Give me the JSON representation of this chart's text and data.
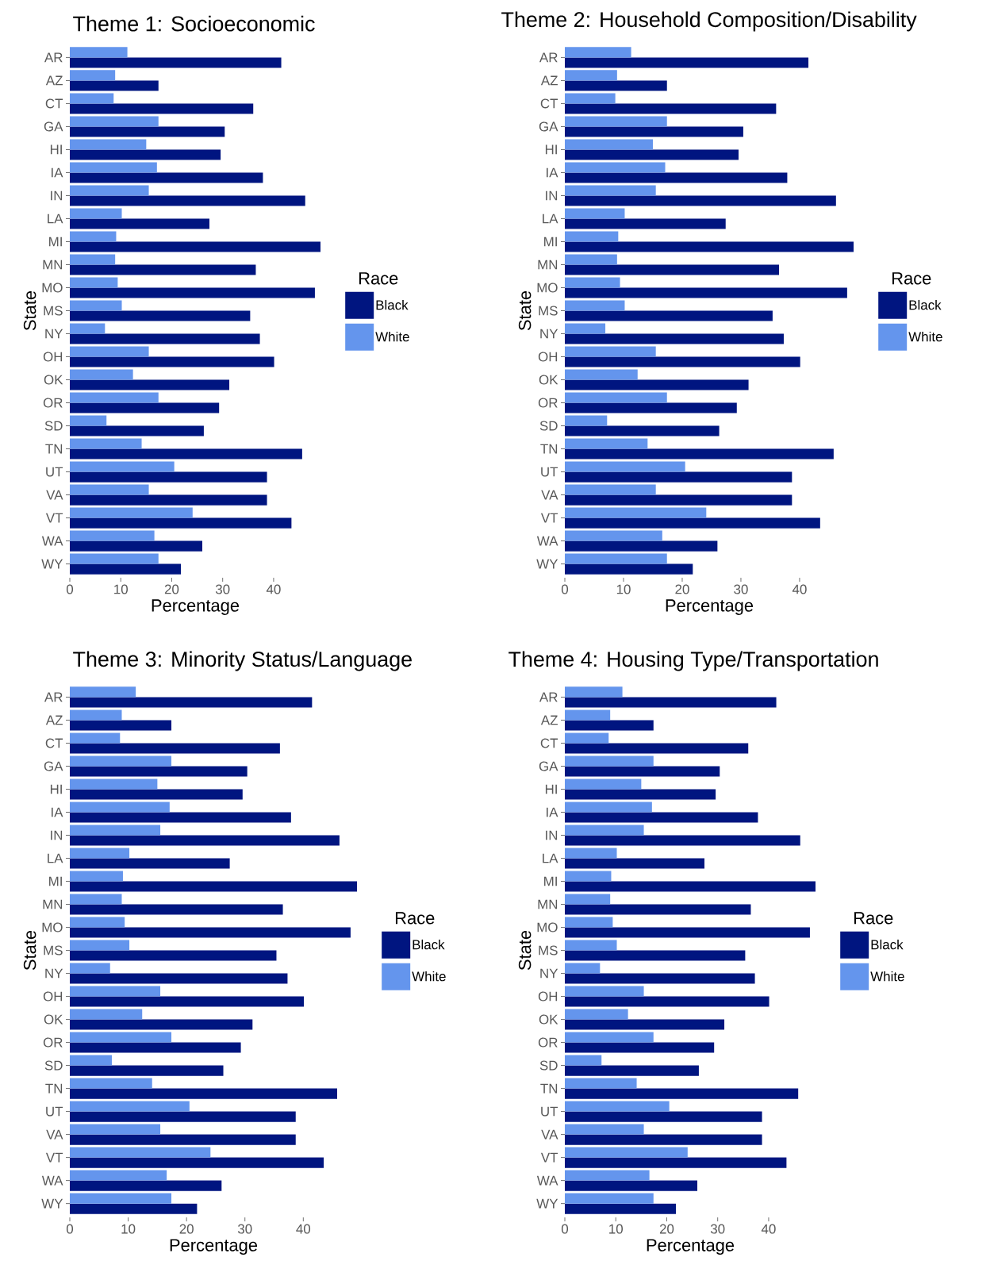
{
  "chart_data": [
    {
      "type": "bar",
      "orientation": "horizontal",
      "title": "Theme 1: Socioeconomic",
      "xlabel": "Percentage",
      "ylabel": "State",
      "legend_title": "Race",
      "legend": "right",
      "xlim": [
        0,
        49.2
      ],
      "xticks": [
        0,
        10,
        20,
        30,
        40
      ],
      "categories": [
        "AR",
        "AZ",
        "CT",
        "GA",
        "HI",
        "IA",
        "IN",
        "LA",
        "MI",
        "MN",
        "MO",
        "MS",
        "NY",
        "OH",
        "OK",
        "OR",
        "SD",
        "TN",
        "UT",
        "VA",
        "VT",
        "WA",
        "WY"
      ],
      "series": [
        {
          "name": "Black",
          "color": "#001580",
          "values": [
            41.5,
            17.4,
            36.0,
            30.4,
            29.6,
            37.9,
            46.2,
            27.4,
            49.2,
            36.5,
            48.1,
            35.4,
            37.3,
            40.1,
            31.3,
            29.3,
            26.3,
            45.6,
            38.7,
            38.7,
            43.5,
            26.0,
            21.8
          ]
        },
        {
          "name": "White",
          "color": "#6495ed",
          "values": [
            11.3,
            8.9,
            8.6,
            17.4,
            15.0,
            17.1,
            15.5,
            10.2,
            9.1,
            8.9,
            9.4,
            10.2,
            6.9,
            15.5,
            12.4,
            17.4,
            7.2,
            14.1,
            20.5,
            15.5,
            24.1,
            16.6,
            17.4
          ]
        }
      ]
    },
    {
      "type": "bar",
      "orientation": "horizontal",
      "title": "Theme 2: Household Composition/Disability",
      "xlabel": "Percentage",
      "ylabel": "State",
      "legend_title": "Race",
      "legend": "right",
      "xlim": [
        0,
        49.2
      ],
      "xticks": [
        0,
        10,
        20,
        30,
        40
      ],
      "categories": [
        "AR",
        "AZ",
        "CT",
        "GA",
        "HI",
        "IA",
        "IN",
        "LA",
        "MI",
        "MN",
        "MO",
        "MS",
        "NY",
        "OH",
        "OK",
        "OR",
        "SD",
        "TN",
        "UT",
        "VA",
        "VT",
        "WA",
        "WY"
      ],
      "series": [
        {
          "name": "Black",
          "color": "#001580",
          "values": [
            41.5,
            17.4,
            36.0,
            30.4,
            29.6,
            37.9,
            46.2,
            27.4,
            49.2,
            36.5,
            48.1,
            35.4,
            37.3,
            40.1,
            31.3,
            29.3,
            26.3,
            45.8,
            38.7,
            38.7,
            43.5,
            26.0,
            21.8
          ]
        },
        {
          "name": "White",
          "color": "#6495ed",
          "values": [
            11.3,
            8.9,
            8.6,
            17.4,
            15.0,
            17.1,
            15.5,
            10.2,
            9.1,
            8.9,
            9.4,
            10.2,
            6.9,
            15.5,
            12.4,
            17.4,
            7.2,
            14.1,
            20.5,
            15.5,
            24.1,
            16.6,
            17.4
          ]
        }
      ]
    },
    {
      "type": "bar",
      "orientation": "horizontal",
      "title": "Theme 3: Minority Status/Language",
      "xlabel": "Percentage",
      "ylabel": "State",
      "legend_title": "Race",
      "legend": "right",
      "xlim": [
        0,
        49.2
      ],
      "xticks": [
        0,
        10,
        20,
        30,
        40
      ],
      "categories": [
        "AR",
        "AZ",
        "CT",
        "GA",
        "HI",
        "IA",
        "IN",
        "LA",
        "MI",
        "MN",
        "MO",
        "MS",
        "NY",
        "OH",
        "OK",
        "OR",
        "SD",
        "TN",
        "UT",
        "VA",
        "VT",
        "WA",
        "WY"
      ],
      "series": [
        {
          "name": "Black",
          "color": "#001580",
          "values": [
            41.5,
            17.4,
            36.0,
            30.4,
            29.6,
            37.9,
            46.2,
            27.4,
            49.2,
            36.5,
            48.1,
            35.4,
            37.3,
            40.1,
            31.3,
            29.3,
            26.3,
            45.8,
            38.7,
            38.7,
            43.5,
            26.0,
            21.8
          ]
        },
        {
          "name": "White",
          "color": "#6495ed",
          "values": [
            11.3,
            8.9,
            8.6,
            17.4,
            15.0,
            17.1,
            15.5,
            10.2,
            9.1,
            8.9,
            9.4,
            10.2,
            6.9,
            15.5,
            12.4,
            17.4,
            7.2,
            14.1,
            20.5,
            15.5,
            24.1,
            16.6,
            17.4
          ]
        }
      ]
    },
    {
      "type": "bar",
      "orientation": "horizontal",
      "title": "Theme 4: Housing Type/Transportation",
      "xlabel": "Percentage",
      "ylabel": "State",
      "legend_title": "Race",
      "legend": "right",
      "xlim": [
        0,
        49.2
      ],
      "xticks": [
        0,
        10,
        20,
        30,
        40
      ],
      "categories": [
        "AR",
        "AZ",
        "CT",
        "GA",
        "HI",
        "IA",
        "IN",
        "LA",
        "MI",
        "MN",
        "MO",
        "MS",
        "NY",
        "OH",
        "OK",
        "OR",
        "SD",
        "TN",
        "UT",
        "VA",
        "VT",
        "WA",
        "WY"
      ],
      "series": [
        {
          "name": "Black",
          "color": "#001580",
          "values": [
            41.5,
            17.4,
            36.0,
            30.4,
            29.6,
            37.9,
            46.2,
            27.4,
            49.2,
            36.5,
            48.1,
            35.4,
            37.3,
            40.1,
            31.3,
            29.3,
            26.3,
            45.8,
            38.7,
            38.7,
            43.5,
            26.0,
            21.8
          ]
        },
        {
          "name": "White",
          "color": "#6495ed",
          "values": [
            11.3,
            8.9,
            8.6,
            17.4,
            15.0,
            17.1,
            15.5,
            10.2,
            9.1,
            8.9,
            9.4,
            10.2,
            6.9,
            15.5,
            12.4,
            17.4,
            7.2,
            14.1,
            20.5,
            15.5,
            24.1,
            16.6,
            17.4
          ]
        }
      ]
    }
  ]
}
